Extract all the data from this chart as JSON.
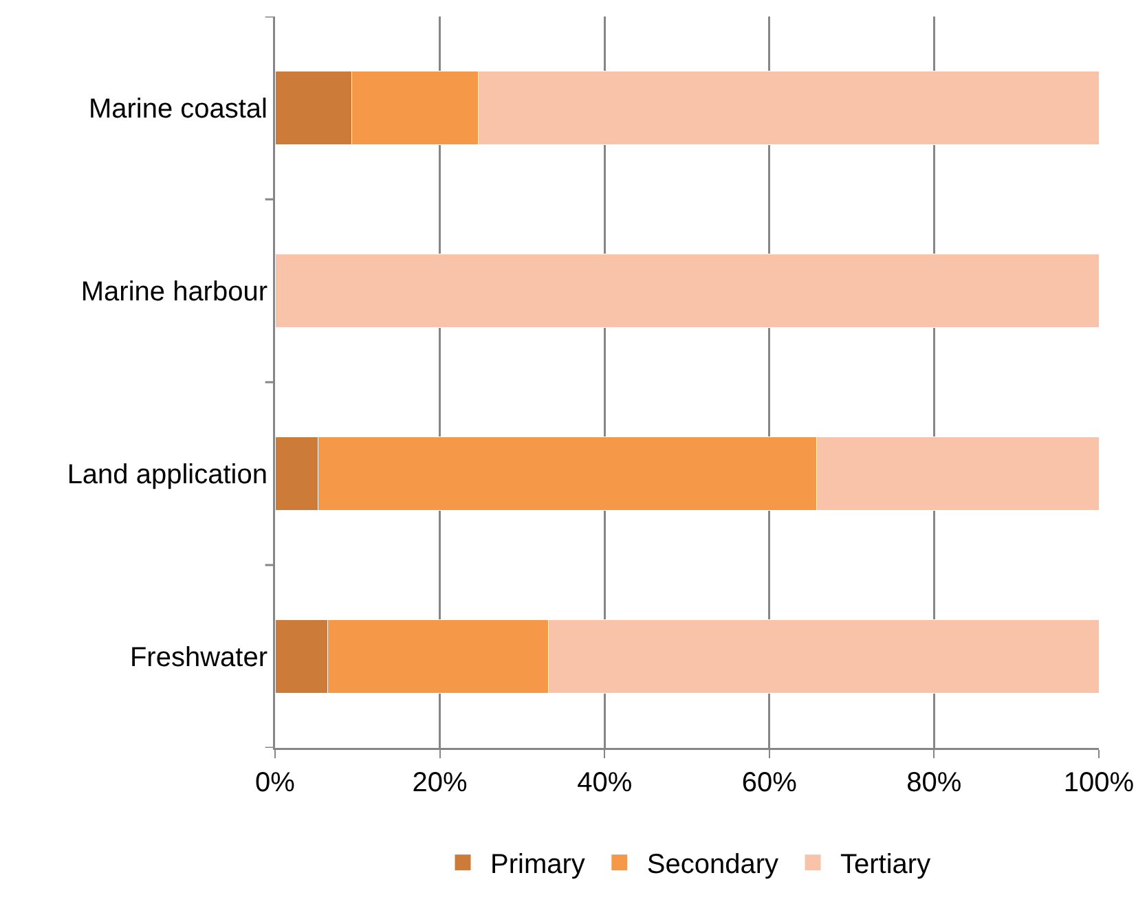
{
  "chart_data": {
    "type": "bar",
    "orientation": "horizontal",
    "stacked": true,
    "categories": [
      "Marine coastal",
      "Marine harbour",
      "Land application",
      "Freshwater"
    ],
    "series": [
      {
        "name": "Primary",
        "color": "#cc7b38",
        "values": [
          9.3,
          0,
          5.2,
          6.4
        ]
      },
      {
        "name": "Secondary",
        "color": "#f59848",
        "values": [
          15.4,
          0,
          60.5,
          26.8
        ]
      },
      {
        "name": "Tertiary",
        "color": "#f9c3aa",
        "values": [
          75.3,
          100,
          34.3,
          66.8
        ]
      }
    ],
    "xlim": [
      0,
      100
    ],
    "xticks": [
      {
        "value": 0,
        "label": "0%"
      },
      {
        "value": 20,
        "label": "20%"
      },
      {
        "value": 40,
        "label": "40%"
      },
      {
        "value": 60,
        "label": "60%"
      },
      {
        "value": 80,
        "label": "80%"
      },
      {
        "value": 100,
        "label": "100%"
      }
    ],
    "grid": "x",
    "legend": "bottom"
  }
}
